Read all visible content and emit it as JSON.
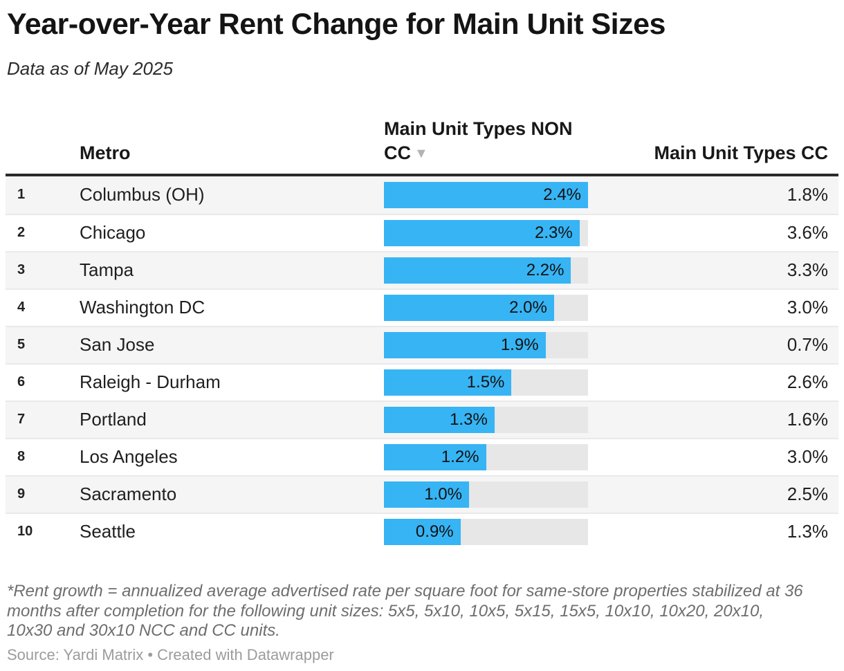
{
  "title": "Year-over-Year Rent Change for Main Unit Sizes",
  "subtitle": "Data as of May 2025",
  "table": {
    "header": {
      "metro": "Metro",
      "non_cc": "Main Unit Types NON CC",
      "cc": "Main Unit Types CC",
      "sort_icon": "▼"
    },
    "bar_axis_max": 2.4,
    "rows": [
      {
        "rank": "1",
        "metro": "Columbus (OH)",
        "non_cc": 2.4,
        "non_cc_label": "2.4%",
        "cc_label": "1.8%"
      },
      {
        "rank": "2",
        "metro": "Chicago",
        "non_cc": 2.3,
        "non_cc_label": "2.3%",
        "cc_label": "3.6%"
      },
      {
        "rank": "3",
        "metro": "Tampa",
        "non_cc": 2.2,
        "non_cc_label": "2.2%",
        "cc_label": "3.3%"
      },
      {
        "rank": "4",
        "metro": "Washington DC",
        "non_cc": 2.0,
        "non_cc_label": "2.0%",
        "cc_label": "3.0%"
      },
      {
        "rank": "5",
        "metro": "San Jose",
        "non_cc": 1.9,
        "non_cc_label": "1.9%",
        "cc_label": "0.7%"
      },
      {
        "rank": "6",
        "metro": "Raleigh - Durham",
        "non_cc": 1.5,
        "non_cc_label": "1.5%",
        "cc_label": "2.6%"
      },
      {
        "rank": "7",
        "metro": "Portland",
        "non_cc": 1.3,
        "non_cc_label": "1.3%",
        "cc_label": "1.6%"
      },
      {
        "rank": "8",
        "metro": "Los Angeles",
        "non_cc": 1.2,
        "non_cc_label": "1.2%",
        "cc_label": "3.0%"
      },
      {
        "rank": "9",
        "metro": "Sacramento",
        "non_cc": 1.0,
        "non_cc_label": "1.0%",
        "cc_label": "2.5%"
      },
      {
        "rank": "10",
        "metro": "Seattle",
        "non_cc": 0.9,
        "non_cc_label": "0.9%",
        "cc_label": "1.3%"
      }
    ]
  },
  "footnote": "*Rent growth = annualized average advertised rate per square foot for same-store properties stabilized at 36 months after completion for the following unit sizes: 5x5, 5x10, 10x5, 5x15, 15x5, 10x10, 10x20, 20x10, 10x30 and 30x10 NCC and CC units.",
  "source": "Source: Yardi Matrix • Created with Datawrapper",
  "colors": {
    "bar": "#37b4f4",
    "track": "#e7e7e7",
    "stripe": "#f5f5f5",
    "rule": "#2b2b2b",
    "divider": "#e9e9e9",
    "sort": "#b3b3b3"
  },
  "chart_data": {
    "type": "table",
    "title": "Year-over-Year Rent Change for Main Unit Sizes",
    "subtitle": "Data as of May 2025",
    "columns": [
      "Metro",
      "Main Unit Types NON CC",
      "Main Unit Types CC"
    ],
    "sorted_by": "Main Unit Types NON CC",
    "sort_direction": "descending",
    "bar_column": "Main Unit Types NON CC",
    "bar_axis_range": [
      0,
      2.4
    ],
    "categories": [
      "Columbus (OH)",
      "Chicago",
      "Tampa",
      "Washington DC",
      "San Jose",
      "Raleigh - Durham",
      "Portland",
      "Los Angeles",
      "Sacramento",
      "Seattle"
    ],
    "series": [
      {
        "name": "Main Unit Types NON CC",
        "unit": "%",
        "values": [
          2.4,
          2.3,
          2.2,
          2.0,
          1.9,
          1.5,
          1.3,
          1.2,
          1.0,
          0.9
        ]
      },
      {
        "name": "Main Unit Types CC",
        "unit": "%",
        "values": [
          1.8,
          3.6,
          3.3,
          3.0,
          0.7,
          2.6,
          1.6,
          3.0,
          2.5,
          1.3
        ]
      }
    ]
  }
}
